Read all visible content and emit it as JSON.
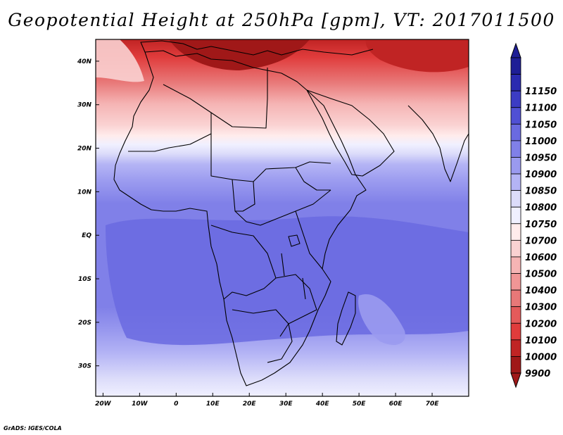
{
  "title": "Geopotential Height at 250hPa [gpm], VT: 2017011500",
  "credit": "GrADS: IGES/COLA",
  "map": {
    "lon_range": [
      -22,
      80
    ],
    "lat_range": [
      -37,
      45
    ],
    "x_ticks": [
      "20W",
      "10W",
      "0",
      "10E",
      "20E",
      "30E",
      "40E",
      "50E",
      "60E",
      "70E"
    ],
    "y_ticks": [
      "40N",
      "30N",
      "20N",
      "10N",
      "EQ",
      "10S",
      "20S",
      "30S"
    ]
  },
  "colorbar": {
    "levels": [
      "9900",
      "10000",
      "10100",
      "10200",
      "10300",
      "10400",
      "10500",
      "10600",
      "10700",
      "10750",
      "10800",
      "10850",
      "10900",
      "10950",
      "11000",
      "11050",
      "11100",
      "11150"
    ],
    "colors": [
      "#a01818",
      "#c02424",
      "#e03c3c",
      "#e45a5a",
      "#e87878",
      "#f09696",
      "#f5b4b4",
      "#fad2d2",
      "#ffecec",
      "#f0f0ff",
      "#dcdcfa",
      "#b4b4f5",
      "#9a9aef",
      "#8080e8",
      "#6a6ae0",
      "#5050d4",
      "#3c3cc4",
      "#2a2ab0",
      "#1e1e96"
    ],
    "top_triangle_color": "#1e1e96",
    "bottom_triangle_color": "#a01818"
  }
}
